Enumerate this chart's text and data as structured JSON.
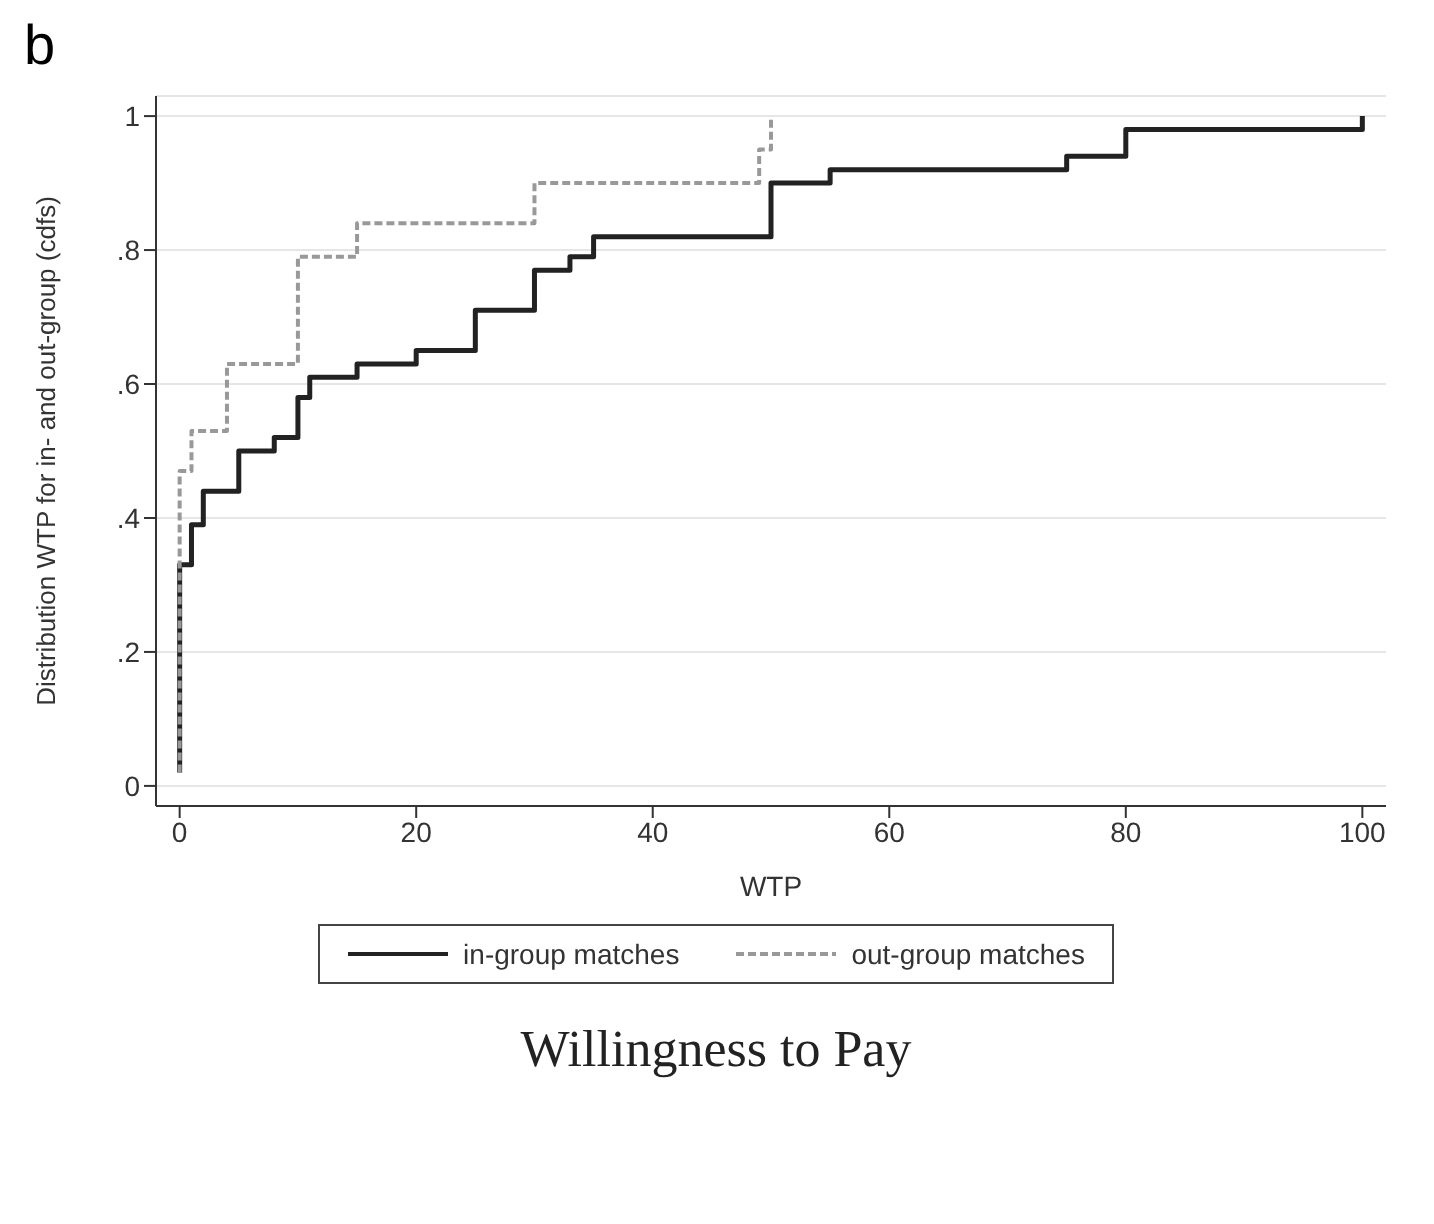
{
  "chart_data": {
    "type": "step",
    "title": "Willingness to Pay",
    "xlabel": "WTP",
    "ylabel": "Distribution WTP for in- and out-group (cdfs)",
    "annotations": [
      "b"
    ],
    "xlim": [
      -2,
      102
    ],
    "xticks": [
      0,
      20,
      40,
      60,
      80,
      100
    ],
    "ylim": [
      -0.03,
      1.03
    ],
    "yticks": [
      0,
      {
        "value": 0.2,
        "label": ".2"
      },
      {
        "value": 0.4,
        "label": ".4"
      },
      {
        "value": 0.6,
        "label": ".6"
      },
      {
        "value": 0.8,
        "label": ".8"
      },
      1
    ],
    "grid": "y",
    "legend": "bottom",
    "marker": "none",
    "series": [
      {
        "name": "in-group matches",
        "color": "#222222",
        "line_style": "solid",
        "x": [
          0,
          0,
          1,
          2,
          5,
          8,
          10,
          11,
          15,
          20,
          25,
          30,
          33,
          35,
          50,
          55,
          75,
          80,
          100
        ],
        "values": [
          0.02,
          0.33,
          0.39,
          0.44,
          0.5,
          0.52,
          0.58,
          0.61,
          0.63,
          0.65,
          0.71,
          0.77,
          0.79,
          0.82,
          0.9,
          0.92,
          0.94,
          0.98,
          1
        ]
      },
      {
        "name": "out-group matches",
        "color": "#999999",
        "line_style": "dashed",
        "x": [
          0,
          0,
          1,
          4,
          10,
          15,
          30,
          49,
          50
        ],
        "values": [
          0.02,
          0.47,
          0.53,
          0.63,
          0.79,
          0.84,
          0.9,
          0.95,
          1
        ]
      }
    ]
  }
}
